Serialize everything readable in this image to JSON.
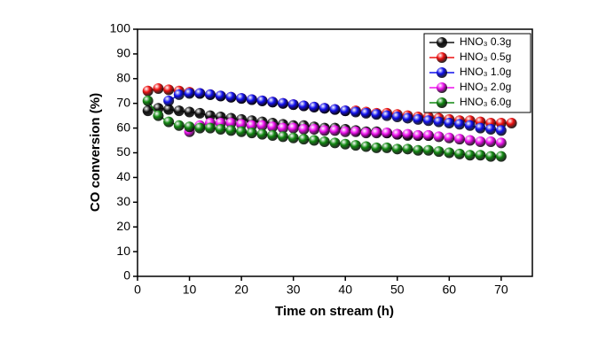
{
  "chart_data": {
    "type": "line",
    "xlabel": "Time on stream (h)",
    "ylabel": "CO conversion (%)",
    "xlim": [
      0,
      76
    ],
    "xticks": [
      0,
      10,
      20,
      30,
      40,
      50,
      60,
      70
    ],
    "ylim": [
      0,
      100
    ],
    "yticks": [
      0,
      10,
      20,
      30,
      40,
      50,
      60,
      70,
      80,
      90,
      100
    ],
    "legend": "upper right",
    "series": [
      {
        "name": "HNO₃ 0.3g",
        "color": "#111111",
        "x": [
          2,
          4,
          6,
          8,
          10,
          12,
          14,
          16,
          18,
          20,
          22,
          24,
          26,
          28,
          30,
          32,
          34,
          36,
          38,
          40,
          42,
          44,
          46,
          48,
          50,
          52,
          54,
          56
        ],
        "values": [
          67,
          68,
          67.5,
          67,
          66.5,
          66,
          65,
          64.5,
          64,
          63.5,
          63,
          62.5,
          62,
          61.5,
          61,
          61,
          60.5,
          60,
          60,
          59.5,
          59,
          58.5,
          58.5,
          58,
          57.5,
          57,
          57,
          57
        ]
      },
      {
        "name": "HNO₃ 0.5g",
        "color": "#ee1111",
        "x": [
          2,
          4,
          6,
          8,
          10,
          12,
          14,
          16,
          18,
          20,
          22,
          24,
          26,
          28,
          30,
          32,
          34,
          36,
          38,
          40,
          42,
          44,
          46,
          48,
          50,
          52,
          54,
          56,
          58,
          60,
          62,
          64,
          66,
          68,
          70,
          72
        ],
        "values": [
          75,
          76,
          75.5,
          75,
          74.5,
          74,
          73.5,
          73,
          72.5,
          72,
          71.5,
          71,
          70.5,
          70,
          69.5,
          69,
          68.5,
          68,
          67.5,
          67,
          67,
          66.5,
          66,
          66,
          65.5,
          65,
          64.5,
          64.5,
          64,
          63.5,
          63,
          63,
          62.5,
          62,
          62,
          62
        ]
      },
      {
        "name": "HNO₃ 1.0g",
        "color": "#1111ee",
        "x": [
          6,
          8,
          10,
          12,
          14,
          16,
          18,
          20,
          22,
          24,
          26,
          28,
          30,
          32,
          34,
          36,
          38,
          40,
          42,
          44,
          46,
          48,
          50,
          52,
          54,
          56,
          58,
          60,
          62,
          64,
          66,
          68,
          70
        ],
        "values": [
          71,
          73.5,
          74,
          74,
          73.5,
          73,
          72.5,
          72,
          71.5,
          71,
          70.5,
          70,
          69.5,
          69,
          68.5,
          68,
          67.5,
          67,
          66.5,
          66,
          65.5,
          65,
          64.5,
          64,
          63.5,
          63,
          62.5,
          62,
          61.5,
          61,
          60,
          59.5,
          59
        ]
      },
      {
        "name": "HNO₃ 2.0g",
        "color": "#ee11ee",
        "x": [
          10,
          12,
          14,
          16,
          18,
          20,
          22,
          24,
          26,
          28,
          30,
          32,
          34,
          36,
          38,
          40,
          42,
          44,
          46,
          48,
          50,
          52,
          54,
          56,
          58,
          60,
          62,
          64,
          66,
          68,
          70
        ],
        "values": [
          58.5,
          61,
          62,
          62,
          62,
          61.5,
          61,
          61,
          60.5,
          60,
          60,
          59.5,
          59.5,
          59,
          59,
          58.5,
          58.5,
          58,
          58,
          58,
          57.5,
          57.5,
          57,
          57,
          56.5,
          56,
          55.5,
          55,
          54.5,
          54.5,
          54
        ]
      },
      {
        "name": "HNO₃ 6.0g",
        "color": "#118811",
        "x": [
          2,
          4,
          6,
          8,
          10,
          12,
          14,
          16,
          18,
          20,
          22,
          24,
          26,
          28,
          30,
          32,
          34,
          36,
          38,
          40,
          42,
          44,
          46,
          48,
          50,
          52,
          54,
          56,
          58,
          60,
          62,
          64,
          66,
          68,
          70
        ],
        "values": [
          71,
          65,
          62.5,
          61,
          60.5,
          60,
          60,
          59.5,
          59,
          58.5,
          58,
          57.5,
          57,
          56.5,
          56,
          55.5,
          55,
          54.5,
          54,
          53.5,
          53,
          52.5,
          52,
          52,
          51.5,
          51.5,
          51,
          51,
          50.5,
          50,
          49.5,
          49,
          49,
          48.5,
          48.5
        ]
      }
    ]
  }
}
